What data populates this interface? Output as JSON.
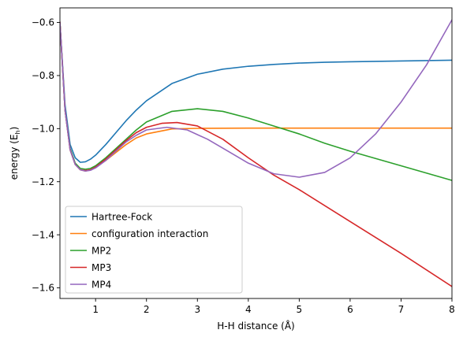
{
  "chart_data": {
    "type": "line",
    "xlabel": "H-H distance (Å)",
    "ylabel": "energy (E",
    "ylabel_sub": "h",
    "ylabel_close": ")",
    "xlim": [
      0.3,
      8.0
    ],
    "ylim": [
      -1.64,
      -0.545
    ],
    "xticks": [
      1,
      2,
      3,
      4,
      5,
      6,
      7,
      8
    ],
    "xtick_labels": [
      "1",
      "2",
      "3",
      "4",
      "5",
      "6",
      "7",
      "8"
    ],
    "yticks": [
      -0.6,
      -0.8,
      -1.0,
      -1.2,
      -1.4,
      -1.6
    ],
    "ytick_labels": [
      "−0.6",
      "−0.8",
      "−1.0",
      "−1.2",
      "−1.4",
      "−1.6"
    ],
    "grid": false,
    "legend_position": "bottom-left",
    "series": [
      {
        "name": "Hartree-Fock",
        "color": "#1f77b4",
        "x": [
          0.3,
          0.4,
          0.5,
          0.6,
          0.7,
          0.8,
          0.9,
          1.0,
          1.2,
          1.4,
          1.6,
          1.8,
          2.0,
          2.5,
          3.0,
          3.5,
          4.0,
          4.5,
          5.0,
          5.5,
          6.0,
          7.0,
          8.0
        ],
        "y": [
          -0.6,
          -0.91,
          -1.06,
          -1.11,
          -1.127,
          -1.125,
          -1.115,
          -1.1,
          -1.06,
          -1.015,
          -0.97,
          -0.93,
          -0.895,
          -0.83,
          -0.795,
          -0.776,
          -0.765,
          -0.758,
          -0.753,
          -0.75,
          -0.748,
          -0.745,
          -0.742
        ]
      },
      {
        "name": "configuration interaction",
        "color": "#ff7f0e",
        "x": [
          0.3,
          0.4,
          0.5,
          0.6,
          0.7,
          0.8,
          0.9,
          1.0,
          1.2,
          1.4,
          1.6,
          1.8,
          2.0,
          2.5,
          3.0,
          4.0,
          5.0,
          6.0,
          7.0,
          8.0
        ],
        "y": [
          -0.6,
          -0.93,
          -1.08,
          -1.135,
          -1.155,
          -1.16,
          -1.155,
          -1.145,
          -1.12,
          -1.09,
          -1.06,
          -1.035,
          -1.02,
          -1.001,
          -0.999,
          -0.998,
          -0.998,
          -0.998,
          -0.998,
          -0.998
        ]
      },
      {
        "name": "MP2",
        "color": "#2ca02c",
        "x": [
          0.3,
          0.4,
          0.5,
          0.6,
          0.7,
          0.8,
          0.9,
          1.0,
          1.2,
          1.4,
          1.6,
          1.8,
          2.0,
          2.5,
          3.0,
          3.5,
          4.0,
          4.5,
          5.0,
          5.5,
          6.0,
          7.0,
          8.0
        ],
        "y": [
          -0.6,
          -0.93,
          -1.075,
          -1.13,
          -1.15,
          -1.153,
          -1.15,
          -1.14,
          -1.11,
          -1.075,
          -1.04,
          -1.005,
          -0.975,
          -0.935,
          -0.925,
          -0.935,
          -0.96,
          -0.99,
          -1.02,
          -1.055,
          -1.085,
          -1.14,
          -1.195
        ]
      },
      {
        "name": "MP3",
        "color": "#d62728",
        "x": [
          0.3,
          0.4,
          0.5,
          0.6,
          0.7,
          0.8,
          0.9,
          1.0,
          1.2,
          1.4,
          1.6,
          1.8,
          2.0,
          2.3,
          2.6,
          3.0,
          3.5,
          4.0,
          4.5,
          5.0,
          6.0,
          7.0,
          8.0
        ],
        "y": [
          -0.6,
          -0.93,
          -1.08,
          -1.135,
          -1.155,
          -1.158,
          -1.155,
          -1.145,
          -1.115,
          -1.08,
          -1.045,
          -1.015,
          -0.995,
          -0.98,
          -0.977,
          -0.99,
          -1.04,
          -1.11,
          -1.175,
          -1.23,
          -1.35,
          -1.47,
          -1.595
        ]
      },
      {
        "name": "MP4",
        "color": "#9467bd",
        "x": [
          0.3,
          0.4,
          0.5,
          0.6,
          0.7,
          0.8,
          0.9,
          1.0,
          1.2,
          1.4,
          1.6,
          1.8,
          2.0,
          2.4,
          2.8,
          3.2,
          3.6,
          4.0,
          4.5,
          5.0,
          5.5,
          6.0,
          6.5,
          7.0,
          7.5,
          8.0
        ],
        "y": [
          -0.6,
          -0.93,
          -1.08,
          -1.135,
          -1.155,
          -1.16,
          -1.157,
          -1.148,
          -1.12,
          -1.085,
          -1.05,
          -1.025,
          -1.005,
          -0.995,
          -1.005,
          -1.04,
          -1.085,
          -1.13,
          -1.17,
          -1.183,
          -1.165,
          -1.11,
          -1.02,
          -0.9,
          -0.76,
          -0.59
        ]
      }
    ]
  }
}
